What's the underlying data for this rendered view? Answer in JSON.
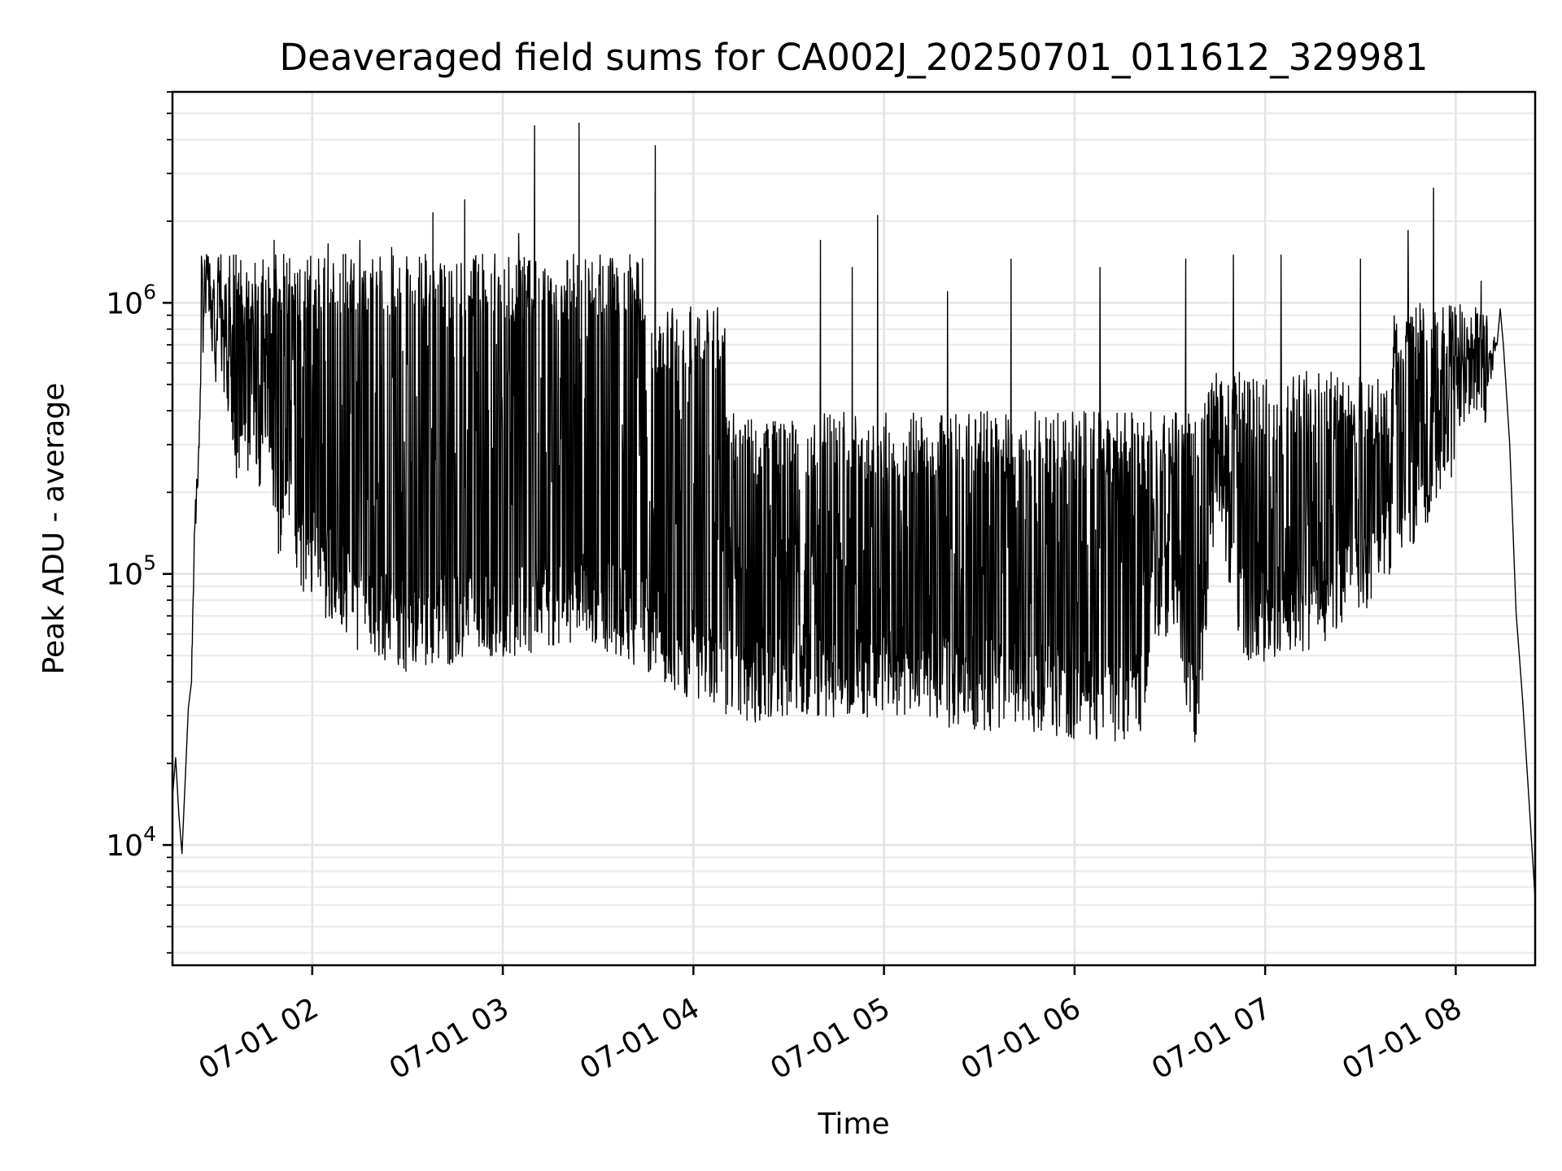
{
  "chart_data": {
    "type": "line",
    "title": "Deaveraged field sums for CA002J_20250701_011612_329981",
    "xlabel": "Time",
    "ylabel": "Peak ADU - average",
    "yscale": "log",
    "grid": true,
    "line_color": "#000000",
    "xlim": [
      "2025-07-01 01:16",
      "2025-07-01 08:25"
    ],
    "ylim": [
      3600,
      6000000
    ],
    "xticks": [
      {
        "value": "2025-07-01 02:00",
        "label": "07-01 02"
      },
      {
        "value": "2025-07-01 03:00",
        "label": "07-01 03"
      },
      {
        "value": "2025-07-01 04:00",
        "label": "07-01 04"
      },
      {
        "value": "2025-07-01 05:00",
        "label": "07-01 05"
      },
      {
        "value": "2025-07-01 06:00",
        "label": "07-01 06"
      },
      {
        "value": "2025-07-01 07:00",
        "label": "07-01 07"
      },
      {
        "value": "2025-07-01 08:00",
        "label": "07-01 08"
      }
    ],
    "yticks": [
      {
        "value": 10000,
        "base": "10",
        "exp": "4"
      },
      {
        "value": 100000,
        "base": "10",
        "exp": "5"
      },
      {
        "value": 1000000,
        "base": "10",
        "exp": "6"
      }
    ],
    "series": [
      {
        "points": [
          [
            "2025-07-01 01:16",
            15000
          ],
          [
            "2025-07-01 01:17",
            21000
          ],
          [
            "2025-07-01 01:18",
            13000
          ],
          [
            "2025-07-01 01:19",
            9300
          ],
          [
            "2025-07-01 01:21",
            32000
          ],
          [
            "2025-07-01 01:22",
            40000
          ],
          [
            "2025-07-01 01:23",
            150000
          ],
          [
            "2025-07-01 01:24",
            230000
          ],
          [
            "2025-07-01 01:25",
            600000
          ],
          [
            "2025-07-01 01:26",
            1300000
          ],
          [
            "2025-07-01 01:27",
            1200000
          ],
          [
            "2025-07-01 01:28",
            1050000
          ],
          [
            "2025-07-01 01:30",
            600000
          ],
          [
            "2025-07-01 01:32",
            700000
          ],
          [
            "2025-07-01 01:34",
            480000
          ],
          [
            "2025-07-01 01:36",
            300000
          ],
          [
            "2025-07-01 01:38",
            420000
          ],
          [
            "2025-07-01 01:40",
            330000
          ],
          [
            "2025-07-01 01:42",
            400000
          ],
          [
            "2025-07-01 01:44",
            260000
          ],
          [
            "2025-07-01 01:46",
            500000
          ],
          [
            "2025-07-01 01:48",
            220000
          ],
          [
            "2025-07-01 01:50",
            150000
          ],
          [
            "2025-07-01 01:52",
            300000
          ],
          [
            "2025-07-01 01:55",
            130000
          ],
          [
            "2025-07-01 02:00",
            120000
          ],
          [
            "2025-07-01 02:05",
            100000
          ],
          [
            "2025-07-01 02:10",
            90000
          ],
          [
            "2025-07-01 02:15",
            75000
          ],
          [
            "2025-07-01 02:20",
            70000
          ],
          [
            "2025-07-01 02:30",
            65000
          ],
          [
            "2025-07-01 02:40",
            65000
          ],
          [
            "2025-07-01 02:50",
            75000
          ],
          [
            "2025-07-01 03:00",
            70000
          ],
          [
            "2025-07-01 03:10",
            75000
          ],
          [
            "2025-07-01 03:20",
            80000
          ],
          [
            "2025-07-01 03:30",
            80000
          ],
          [
            "2025-07-01 03:40",
            70000
          ],
          [
            "2025-07-01 03:50",
            60000
          ],
          [
            "2025-07-01 04:00",
            50000
          ],
          [
            "2025-07-01 04:10",
            45000
          ],
          [
            "2025-07-01 04:20",
            42000
          ],
          [
            "2025-07-01 04:30",
            45000
          ],
          [
            "2025-07-01 04:40",
            44000
          ],
          [
            "2025-07-01 04:50",
            43000
          ],
          [
            "2025-07-01 05:00",
            45000
          ],
          [
            "2025-07-01 05:10",
            42000
          ],
          [
            "2025-07-01 05:20",
            40000
          ],
          [
            "2025-07-01 05:30",
            40000
          ],
          [
            "2025-07-01 05:40",
            38000
          ],
          [
            "2025-07-01 05:50",
            37000
          ],
          [
            "2025-07-01 06:00",
            37000
          ],
          [
            "2025-07-01 06:10",
            36000
          ],
          [
            "2025-07-01 06:20",
            35000
          ],
          [
            "2025-07-01 06:22",
            40000
          ],
          [
            "2025-07-01 06:24",
            75000
          ],
          [
            "2025-07-01 06:30",
            90000
          ],
          [
            "2025-07-01 06:35",
            50000
          ],
          [
            "2025-07-01 06:38",
            35000
          ],
          [
            "2025-07-01 06:40",
            50000
          ],
          [
            "2025-07-01 06:42",
            120000
          ],
          [
            "2025-07-01 06:45",
            200000
          ],
          [
            "2025-07-01 06:48",
            160000
          ],
          [
            "2025-07-01 06:50",
            90000
          ],
          [
            "2025-07-01 06:55",
            70000
          ],
          [
            "2025-07-01 07:00",
            70000
          ],
          [
            "2025-07-01 07:10",
            75000
          ],
          [
            "2025-07-01 07:20",
            85000
          ],
          [
            "2025-07-01 07:30",
            100000
          ],
          [
            "2025-07-01 07:40",
            150000
          ],
          [
            "2025-07-01 07:50",
            220000
          ],
          [
            "2025-07-01 08:00",
            350000
          ],
          [
            "2025-07-01 08:05",
            500000
          ],
          [
            "2025-07-01 08:10",
            550000
          ],
          [
            "2025-07-01 08:13",
            700000
          ],
          [
            "2025-07-01 08:14",
            950000
          ],
          [
            "2025-07-01 08:15",
            700000
          ],
          [
            "2025-07-01 08:17",
            300000
          ],
          [
            "2025-07-01 08:19",
            72000
          ],
          [
            "2025-07-01 08:21",
            35000
          ],
          [
            "2025-07-01 08:23",
            15000
          ],
          [
            "2025-07-01 08:25",
            6300
          ]
        ],
        "spikes": [
          [
            "2025-07-01 01:40",
            1200000
          ],
          [
            "2025-07-01 01:48",
            1700000
          ],
          [
            "2025-07-01 01:52",
            1400000
          ],
          [
            "2025-07-01 02:05",
            1650000
          ],
          [
            "2025-07-01 02:15",
            1700000
          ],
          [
            "2025-07-01 02:25",
            1600000
          ],
          [
            "2025-07-01 02:38",
            2150000
          ],
          [
            "2025-07-01 02:48",
            2400000
          ],
          [
            "2025-07-01 03:05",
            1800000
          ],
          [
            "2025-07-01 03:10",
            4500000
          ],
          [
            "2025-07-01 03:24",
            4600000
          ],
          [
            "2025-07-01 03:48",
            3800000
          ],
          [
            "2025-07-01 04:40",
            1700000
          ],
          [
            "2025-07-01 04:50",
            1350000
          ],
          [
            "2025-07-01 04:58",
            2100000
          ],
          [
            "2025-07-01 05:20",
            1100000
          ],
          [
            "2025-07-01 05:40",
            1450000
          ],
          [
            "2025-07-01 06:08",
            1350000
          ],
          [
            "2025-07-01 06:35",
            1450000
          ],
          [
            "2025-07-01 06:50",
            1500000
          ],
          [
            "2025-07-01 07:05",
            1500000
          ],
          [
            "2025-07-01 07:30",
            1450000
          ],
          [
            "2025-07-01 07:45",
            1850000
          ],
          [
            "2025-07-01 07:53",
            2650000
          ],
          [
            "2025-07-01 08:08",
            1200000
          ]
        ]
      }
    ]
  }
}
